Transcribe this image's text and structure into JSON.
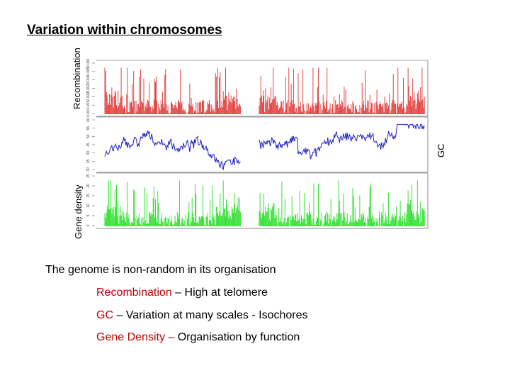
{
  "title": "Variation within chromosomes",
  "chart_data": {
    "type": "line",
    "panels": [
      {
        "name": "Recombination",
        "color": "#e03030",
        "yticks": [
          "0.00",
          "0.001",
          "0.002",
          "0.003",
          "0.004",
          "0.005",
          "0.006"
        ]
      },
      {
        "name": "GC",
        "color": "#2020c0",
        "yticks": [
          "30",
          "35",
          "40",
          "45",
          "50",
          "55",
          "60"
        ]
      },
      {
        "name": "Gene density",
        "color": "#22dd22",
        "yticks": [
          "0",
          "5",
          "10",
          "15",
          "20",
          "25"
        ]
      }
    ],
    "segments": [
      {
        "from": 0.0,
        "to": 0.44
      },
      {
        "from": 0.5,
        "to": 1.0
      }
    ],
    "grid": false,
    "legend": "none"
  },
  "labels": {
    "recombination_axis": "Recombination",
    "gc_axis": "GC",
    "gene_density_axis": "Gene density"
  },
  "bullets": {
    "intro": "The genome is non-random in its organisation",
    "recombination_term": "Recombination",
    "recombination_desc": " – High at telomere",
    "gc_term": "GC",
    "gc_desc": " – Variation at many scales - Isochores",
    "gene_term": "Gene Density",
    "gene_dash": " – ",
    "gene_desc": "Organisation by function"
  }
}
